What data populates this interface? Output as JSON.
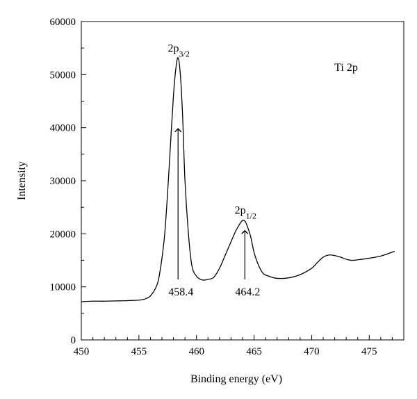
{
  "chart_data": {
    "type": "line",
    "title": "",
    "xlabel": "Binding energy (eV)",
    "ylabel": "Intensity",
    "xlim": [
      450,
      478
    ],
    "ylim": [
      0,
      60000
    ],
    "x_ticks": [
      "450",
      "455",
      "460",
      "465",
      "470",
      "475"
    ],
    "y_ticks": [
      "0",
      "10000",
      "20000",
      "30000",
      "40000",
      "50000",
      "60000"
    ],
    "grid": false,
    "series": [
      {
        "x": [
          450,
          451,
          452,
          453,
          454,
          455,
          455.5,
          456,
          456.5,
          456.8,
          457.2,
          457.5,
          457.8,
          458.0,
          458.2,
          458.4,
          458.6,
          458.8,
          459.0,
          459.3,
          459.6,
          460,
          460.5,
          461,
          461.5,
          462,
          462.5,
          463.0,
          463.4,
          463.8,
          464.0,
          464.2,
          464.4,
          464.7,
          465.0,
          465.4,
          465.8,
          466.3,
          467,
          468,
          469,
          470,
          470.5,
          471,
          471.5,
          472,
          472.5,
          473,
          473.5,
          474,
          475,
          476,
          477.2
        ],
        "y": [
          7200,
          7300,
          7300,
          7350,
          7400,
          7500,
          7700,
          8300,
          10000,
          12500,
          19000,
          28000,
          39000,
          46000,
          51000,
          53200,
          50000,
          42000,
          30000,
          20000,
          14000,
          12000,
          11300,
          11400,
          11800,
          13500,
          16000,
          18500,
          20500,
          22000,
          22500,
          22400,
          21500,
          19500,
          16500,
          14000,
          12500,
          12000,
          11600,
          11700,
          12300,
          13500,
          14600,
          15600,
          16000,
          15900,
          15600,
          15200,
          15000,
          15100,
          15400,
          15800,
          16700
        ]
      }
    ],
    "annotations": {
      "panel_label": "Ti 2p",
      "peaks": [
        {
          "base": "2p",
          "sub": "3/2",
          "energy": 458.4,
          "value_label": "458.4",
          "label_y": 53500,
          "arrow_top": 39800
        },
        {
          "base": "2p",
          "sub": "1/2",
          "energy": 464.2,
          "value_label": "464.2",
          "label_y": 23000,
          "arrow_top": 20600
        }
      ]
    }
  }
}
